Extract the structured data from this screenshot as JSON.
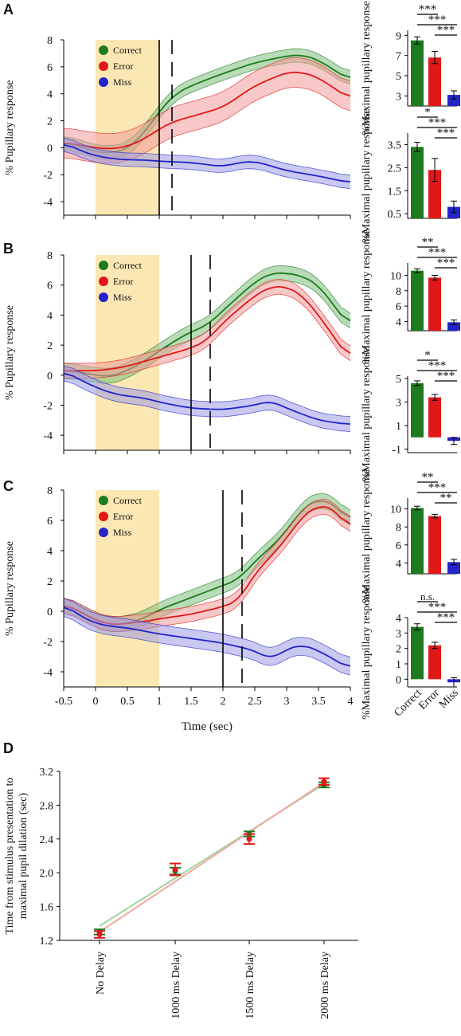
{
  "panels": [
    {
      "letter": "A"
    },
    {
      "letter": "B"
    },
    {
      "letter": "C"
    },
    {
      "letter": "D"
    }
  ],
  "colors": {
    "correct": "#1e7a1e",
    "correct_band": "#7cc07c",
    "error": "#e01818",
    "error_band": "#f29a9a",
    "miss": "#2424c8",
    "miss_band": "#9a9ae6",
    "stimulus": "#fbe7b3"
  },
  "chart_data": [
    {
      "type": "line",
      "panel": "A",
      "ylabel": "% Pupillary response",
      "ylim": [
        -5,
        8
      ],
      "xlim": [
        -0.5,
        4
      ],
      "yticks": [
        "8",
        "6",
        "4",
        "2",
        "0",
        "-2",
        "-4"
      ],
      "stimulus_window": [
        0,
        1
      ],
      "solid_line_x": 1.0,
      "dashed_line_x": 1.2,
      "series": [
        {
          "name": "Correct",
          "x": [
            -0.5,
            -0.25,
            0,
            0.25,
            0.5,
            0.75,
            1,
            1.25,
            1.5,
            2,
            2.5,
            3,
            3.25,
            3.5,
            4
          ],
          "y": [
            0.4,
            0.1,
            -0.3,
            -0.4,
            -0.1,
            1.0,
            2.7,
            4.0,
            4.6,
            5.5,
            6.3,
            6.8,
            6.9,
            6.5,
            5.0
          ],
          "band": 0.5
        },
        {
          "name": "Error",
          "x": [
            -0.5,
            -0.25,
            0,
            0.25,
            0.5,
            0.75,
            1,
            1.25,
            1.5,
            2,
            2.5,
            3,
            3.25,
            3.5,
            4
          ],
          "y": [
            0.4,
            0.2,
            0,
            -0.1,
            0.1,
            0.6,
            1.4,
            2.0,
            2.3,
            3.0,
            4.6,
            5.6,
            5.6,
            5.2,
            3.6
          ],
          "band": 1.1
        },
        {
          "name": "Miss",
          "x": [
            -0.5,
            -0.25,
            0,
            0.25,
            0.5,
            0.75,
            1,
            1.5,
            2,
            2.25,
            2.5,
            3,
            3.5,
            4
          ],
          "y": [
            0.4,
            -0.2,
            -0.6,
            -0.8,
            -0.9,
            -0.9,
            -1.0,
            -1.1,
            -1.4,
            -1.1,
            -1.0,
            -1.7,
            -2.1,
            -2.6
          ],
          "band": 0.5
        }
      ],
      "legend": [
        "Correct",
        "Error",
        "Miss"
      ]
    },
    {
      "type": "line",
      "panel": "B",
      "ylabel": "% Pupillary response",
      "ylim": [
        -5,
        8
      ],
      "xlim": [
        -0.5,
        4
      ],
      "yticks": [
        "8",
        "6",
        "4",
        "2",
        "0",
        "-2",
        "-4"
      ],
      "stimulus_window": [
        0,
        1
      ],
      "solid_line_x": 1.5,
      "dashed_line_x": 1.8,
      "series": [
        {
          "name": "Correct",
          "x": [
            -0.5,
            -0.25,
            0,
            0.25,
            0.5,
            0.75,
            1,
            1.25,
            1.5,
            1.75,
            2,
            2.5,
            2.75,
            3,
            3.25,
            3.5,
            4
          ],
          "y": [
            0.3,
            0.2,
            0,
            -0.1,
            0.3,
            0.9,
            1.6,
            2.3,
            2.9,
            3.3,
            4.3,
            6.2,
            6.8,
            6.8,
            6.6,
            6.0,
            3.2
          ],
          "band": 0.5
        },
        {
          "name": "Error",
          "x": [
            -0.5,
            -0.25,
            0,
            0.25,
            0.5,
            0.75,
            1,
            1.25,
            1.5,
            1.75,
            2,
            2.5,
            2.75,
            3,
            3.25,
            3.5,
            4
          ],
          "y": [
            0.3,
            0.3,
            0.3,
            0.4,
            0.6,
            0.9,
            1.2,
            1.5,
            1.8,
            2.3,
            3.5,
            5.3,
            5.9,
            5.9,
            5.3,
            4.0,
            1.0
          ],
          "band": 0.5
        },
        {
          "name": "Miss",
          "x": [
            -0.5,
            -0.25,
            0,
            0.25,
            0.5,
            0.75,
            1,
            1.5,
            2,
            2.5,
            2.75,
            3,
            3.5,
            4
          ],
          "y": [
            0.3,
            -0.3,
            -0.8,
            -1.2,
            -1.4,
            -1.5,
            -1.8,
            -2.2,
            -2.3,
            -2.0,
            -1.7,
            -2.2,
            -3.0,
            -3.3
          ],
          "band": 0.5
        }
      ],
      "legend": [
        "Correct",
        "Error",
        "Miss"
      ]
    },
    {
      "type": "line",
      "panel": "C",
      "ylabel": "% Pupillary response",
      "ylim": [
        -5,
        8
      ],
      "xlim": [
        -0.5,
        4
      ],
      "yticks": [
        "8",
        "6",
        "4",
        "2",
        "0",
        "-2",
        "-4"
      ],
      "xticks": [
        "-0.5",
        "0",
        "0.5",
        "1",
        "1.5",
        "2",
        "2.5",
        "3",
        "3.5",
        "4"
      ],
      "xlabel": "Time (sec)",
      "stimulus_window": [
        0,
        1
      ],
      "solid_line_x": 2.0,
      "dashed_line_x": 2.3,
      "series": [
        {
          "name": "Correct",
          "x": [
            -0.5,
            -0.25,
            0,
            0.25,
            0.5,
            0.75,
            1,
            1.5,
            2,
            2.25,
            2.5,
            2.75,
            3,
            3.25,
            3.5,
            3.75,
            4
          ],
          "y": [
            0.5,
            0,
            -0.6,
            -0.9,
            -0.8,
            -0.5,
            0.1,
            0.9,
            1.7,
            2.1,
            3.3,
            4.2,
            5.3,
            6.8,
            7.4,
            7.1,
            5.8
          ],
          "band": 0.5
        },
        {
          "name": "Error",
          "x": [
            -0.5,
            -0.25,
            0,
            0.25,
            0.5,
            0.75,
            1,
            1.5,
            2,
            2.25,
            2.5,
            2.75,
            3,
            3.25,
            3.5,
            3.75,
            4
          ],
          "y": [
            0.5,
            0,
            -0.6,
            -0.9,
            -0.8,
            -0.7,
            -0.5,
            -0.2,
            0.3,
            0.7,
            2.5,
            3.6,
            4.8,
            6.3,
            7.0,
            6.8,
            5.3
          ],
          "band": 0.5
        },
        {
          "name": "Miss",
          "x": [
            -0.5,
            -0.25,
            0,
            0.25,
            0.5,
            0.75,
            1,
            1.5,
            2,
            2.5,
            2.75,
            3,
            3.25,
            3.5,
            4
          ],
          "y": [
            0.5,
            -0.3,
            -0.8,
            -1.0,
            -1.1,
            -1.3,
            -1.5,
            -1.8,
            -2.1,
            -2.6,
            -3.2,
            -2.5,
            -2.2,
            -2.6,
            -3.8
          ],
          "band": 0.6
        }
      ],
      "legend": [
        "Correct",
        "Error",
        "Miss"
      ]
    },
    {
      "type": "bar",
      "panel": "A-top",
      "ylabel": "%Maximal pupillary response",
      "categories": [
        "Correct",
        "Error",
        "Miss"
      ],
      "values": [
        8.5,
        6.8,
        3.1
      ],
      "errors": [
        0.35,
        0.6,
        0.4
      ],
      "ylim": [
        2,
        9.5
      ],
      "yticks": [
        9,
        7,
        5,
        3
      ],
      "significance": [
        "***",
        "***",
        "***"
      ]
    },
    {
      "type": "bar",
      "panel": "A-bottom",
      "ylabel": "%Maximal pupillary response",
      "categories": [
        "Correct",
        "Error",
        "Miss"
      ],
      "values": [
        3.4,
        2.4,
        0.8
      ],
      "errors": [
        0.2,
        0.5,
        0.25
      ],
      "ylim": [
        0.3,
        4.0
      ],
      "yticks": [
        3.5,
        2.5,
        1.5,
        0.5
      ],
      "significance": [
        "*",
        "***",
        "***"
      ]
    },
    {
      "type": "bar",
      "panel": "B-top",
      "ylabel": "%Maximal pupillary response",
      "categories": [
        "Correct",
        "Error",
        "Miss"
      ],
      "values": [
        10.6,
        9.7,
        3.9
      ],
      "errors": [
        0.25,
        0.3,
        0.3
      ],
      "ylim": [
        2.8,
        11.6
      ],
      "yticks": [
        10,
        8,
        6,
        4
      ],
      "significance": [
        "**",
        "***",
        "***"
      ]
    },
    {
      "type": "bar",
      "panel": "B-bottom",
      "ylabel": "%Maximal pupillary response",
      "categories": [
        "Correct",
        "Error",
        "Miss"
      ],
      "values": [
        4.6,
        3.4,
        -0.3
      ],
      "errors": [
        0.2,
        0.25,
        0.3
      ],
      "ylim": [
        -1.3,
        5.2
      ],
      "yticks": [
        5,
        3,
        1,
        -1
      ],
      "significance": [
        "*",
        "***",
        "***"
      ]
    },
    {
      "type": "bar",
      "panel": "C-top",
      "ylabel": "%Maximal pupillary response",
      "categories": [
        "Correct",
        "Error",
        "Miss"
      ],
      "values": [
        10.1,
        9.2,
        4.1
      ],
      "errors": [
        0.2,
        0.2,
        0.3
      ],
      "ylim": [
        2.8,
        11.2
      ],
      "yticks": [
        10,
        8,
        6,
        4
      ],
      "significance": [
        "**",
        "***",
        "**"
      ]
    },
    {
      "type": "bar",
      "panel": "C-bottom",
      "ylabel": "%Maximal pupillary response",
      "categories": [
        "Correct",
        "Error",
        "Miss"
      ],
      "values": [
        3.4,
        2.2,
        -0.2
      ],
      "errors": [
        0.2,
        0.2,
        0.3
      ],
      "ylim": [
        -0.5,
        4.0
      ],
      "yticks": [
        4,
        3,
        2,
        1,
        0
      ],
      "significance": [
        "n.s.",
        "***",
        "***"
      ]
    },
    {
      "type": "scatter",
      "panel": "D",
      "ylabel": "Time from stimulus presentation to maximal pupil dilation (sec)",
      "categories": [
        "No Delay",
        "1000 ms Delay",
        "1500 ms Delay",
        "2000 ms Delay"
      ],
      "ylim": [
        1.2,
        3.2
      ],
      "yticks": [
        "3.2",
        "2.8",
        "2.4",
        "2.0",
        "1.6",
        "1.2"
      ],
      "series": [
        {
          "name": "Correct",
          "values": [
            1.3,
            2.02,
            2.46,
            3.04
          ],
          "errors": [
            0.03,
            0.04,
            0.03,
            0.03
          ],
          "fit": [
            1.37,
            3.05
          ]
        },
        {
          "name": "Error",
          "values": [
            1.27,
            2.04,
            2.4,
            3.08
          ],
          "errors": [
            0.04,
            0.07,
            0.06,
            0.04
          ],
          "fit": [
            1.3,
            3.07
          ]
        }
      ]
    }
  ]
}
